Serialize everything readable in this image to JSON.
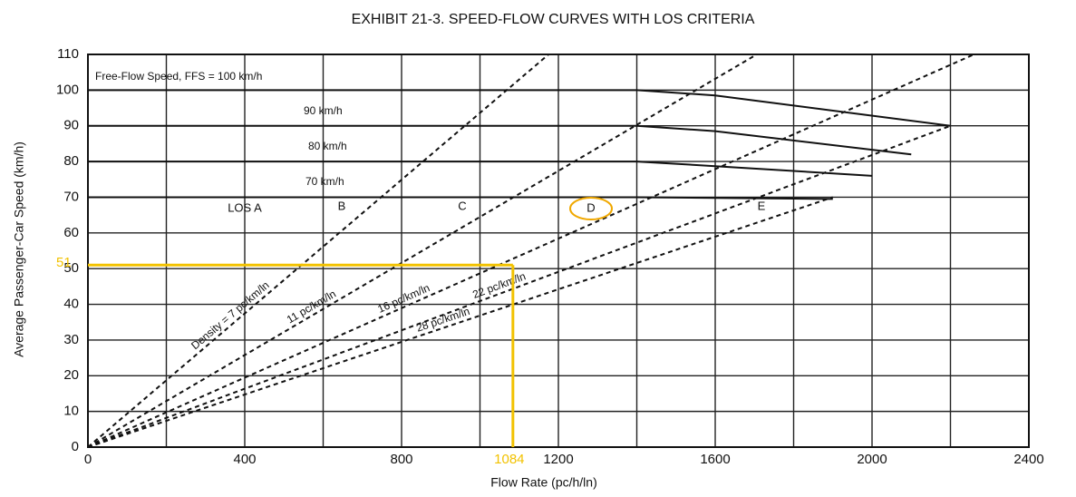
{
  "chart_data": {
    "type": "line",
    "title": "EXHIBIT 21-3.  SPEED-FLOW CURVES WITH LOS CRITERIA",
    "x_label": "Flow Rate (pc/h/ln)",
    "y_label": "Average Passenger-Car Speed (km/h)",
    "xlim": [
      0,
      2400
    ],
    "ylim": [
      0,
      110
    ],
    "xticks": [
      0,
      400,
      800,
      1200,
      1600,
      2000,
      2400
    ],
    "xminor": [
      200,
      600,
      1000,
      1400,
      1800,
      2200
    ],
    "yticks": [
      0,
      10,
      20,
      30,
      40,
      50,
      60,
      70,
      80,
      90,
      100,
      110
    ],
    "grid": true,
    "series": [
      {
        "name": "Free-Flow Speed, FFS = 100 km/h",
        "color": "#111111",
        "dash": false,
        "x": [
          0,
          1400,
          1600,
          2200
        ],
        "values": [
          100,
          100,
          98.5,
          90
        ]
      },
      {
        "name": "90 km/h",
        "color": "#111111",
        "dash": false,
        "x": [
          0,
          1400,
          1600,
          2100
        ],
        "values": [
          90,
          90,
          88.5,
          82
        ]
      },
      {
        "name": "80 km/h",
        "color": "#111111",
        "dash": false,
        "x": [
          0,
          1400,
          1600,
          2000
        ],
        "values": [
          80,
          80,
          78.7,
          76
        ]
      },
      {
        "name": "70 km/h",
        "color": "#111111",
        "dash": false,
        "x": [
          0,
          1400,
          1600,
          1900
        ],
        "values": [
          70,
          70,
          69.8,
          69.5
        ]
      },
      {
        "name": "Density = 7 pc/km/ln",
        "color": "#111111",
        "dash": true,
        "x": [
          0,
          1175
        ],
        "values": [
          0,
          110
        ]
      },
      {
        "name": "11 pc/km/ln",
        "color": "#111111",
        "dash": true,
        "x": [
          0,
          1706
        ],
        "values": [
          0,
          110
        ]
      },
      {
        "name": "16 pc/km/ln",
        "color": "#111111",
        "dash": true,
        "x": [
          0,
          2260
        ],
        "values": [
          0,
          110
        ]
      },
      {
        "name": "22 pc/km/ln",
        "color": "#111111",
        "dash": true,
        "x": [
          0,
          2200
        ],
        "values": [
          0,
          90
        ]
      },
      {
        "name": "28 pc/km/ln",
        "color": "#111111",
        "dash": true,
        "x": [
          0,
          1900
        ],
        "values": [
          0,
          70
        ]
      }
    ],
    "los_labels": [
      "LOS A",
      "B",
      "C",
      "D",
      "E"
    ],
    "highlight": {
      "x": 1084,
      "y": 51,
      "color": "#f2c200",
      "circle_color": "#f0a800"
    }
  }
}
